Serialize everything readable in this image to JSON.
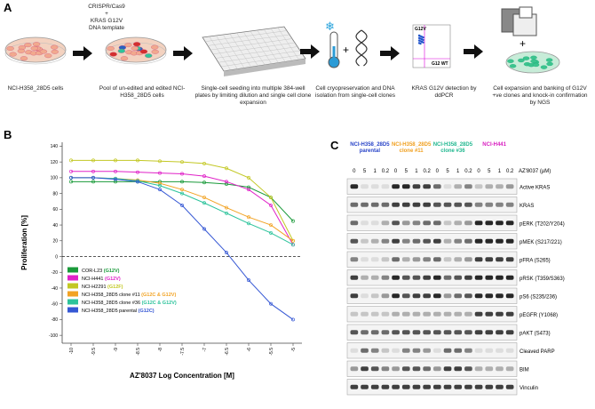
{
  "panel_a": {
    "label": "A",
    "inputs": [
      "CRISPR/Cas9",
      "+",
      "KRAS G12V",
      "DNA template"
    ],
    "steps": [
      "NCI-H358_28D5 cells",
      "Pool of un-edited and edited NCI-H358_28D5 cells",
      "Single-cell seeding into multiple 384-well plates by limiting dilution and single cell clone expansion",
      "Cell cryopreservation and DNA isolation from single-cell clones",
      "KRAS G12V detection by ddPCR",
      "Cell expansion and banking of G12V +ve clones and knock-in confirmation by NGS"
    ],
    "ddpcr": {
      "mutant": "G12V",
      "wildtype": "G12 WT"
    }
  },
  "chart_data": {
    "type": "line",
    "panel_label": "B",
    "y_label": "Proliferation [%]",
    "x_label": "AZ'8037 Log Concentration [M]",
    "x": [
      -10,
      -9.5,
      -9,
      -8.5,
      -8,
      -7.5,
      -7,
      -6.5,
      -6,
      -5.5,
      -5
    ],
    "series": [
      {
        "name": "COR-L23",
        "mutation": "(G12V)",
        "color": "#1a9a3a",
        "values": [
          95,
          95,
          95,
          95,
          95,
          95,
          94,
          92,
          88,
          75,
          45
        ]
      },
      {
        "name": "NCI-H441",
        "mutation": "(G12V)",
        "color": "#e022c8",
        "values": [
          108,
          108,
          108,
          107,
          106,
          105,
          102,
          95,
          85,
          65,
          15
        ]
      },
      {
        "name": "NCI-H2291",
        "mutation": "(G12F)",
        "color": "#c3c824",
        "values": [
          122,
          122,
          122,
          122,
          121,
          120,
          118,
          112,
          100,
          75,
          20
        ]
      },
      {
        "name": "NCI-H358_28D5 clone #11",
        "mutation": "(G12C & G12V)",
        "color": "#f2a324",
        "values": [
          100,
          100,
          99,
          97,
          93,
          85,
          75,
          62,
          50,
          40,
          20
        ]
      },
      {
        "name": "NCI-H358_28D5 clone #36",
        "mutation": "(G12C & G12V)",
        "color": "#2cc39b",
        "values": [
          100,
          100,
          99,
          96,
          90,
          80,
          68,
          55,
          42,
          30,
          15
        ]
      },
      {
        "name": "NCI-H358_28D5 parental",
        "mutation": "(G12C)",
        "color": "#3557d4",
        "values": [
          100,
          100,
          98,
          95,
          85,
          65,
          35,
          5,
          -30,
          -60,
          -80
        ]
      }
    ],
    "xlim": [
      -10.2,
      -4.8
    ],
    "ylim": [
      -110,
      145
    ],
    "xticks": [
      -10,
      -9.5,
      -9,
      -8.5,
      -8,
      -7.5,
      -7,
      -6.5,
      -6,
      -5.5,
      -5
    ],
    "yticks": [
      -100,
      -80,
      -60,
      -40,
      -20,
      0,
      20,
      40,
      60,
      80,
      100,
      120,
      140
    ],
    "legend": "lower left"
  },
  "panel_c": {
    "label": "C",
    "groups": [
      {
        "name": "NCI-H358_28D5 parental",
        "color": "#2a45c8"
      },
      {
        "name": "NCI-H358_28D5 clone #11",
        "color": "#f0a020"
      },
      {
        "name": "NCI-H358_28D5 clone #36",
        "color": "#22b890"
      },
      {
        "name": "NCI-H441",
        "color": "#d81ec0"
      }
    ],
    "doses": [
      "0",
      "5",
      "1",
      "0.2"
    ],
    "dose_label": "AZ'8037 (µM)",
    "rows": [
      "Active KRAS",
      "KRAS",
      "pERK (T202/Y204)",
      "pMEK (S217/221)",
      "pFRA (S265)",
      "pRSK (T359/S363)",
      "pS6 (S235/236)",
      "pEGFR (Y1068)",
      "pAKT (S473)",
      "Cleaved PARP",
      "BIM",
      "Vinculin"
    ]
  }
}
